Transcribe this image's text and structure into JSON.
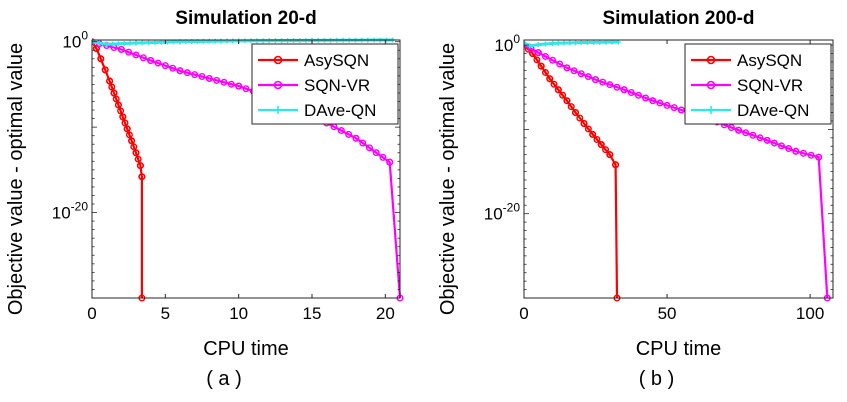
{
  "chart_data": [
    {
      "type": "line",
      "title": "Simulation 20-d",
      "xlabel": "CPU time",
      "ylabel": "Objective value - optimal value",
      "caption": "( a )",
      "yscale": "log",
      "xlim": [
        0,
        21
      ],
      "ylim_log10": [
        -30,
        0.2
      ],
      "xticks": [
        0,
        5,
        10,
        15,
        20
      ],
      "xtick_labels": [
        "0",
        "5",
        "10",
        "15",
        "20"
      ],
      "yticks_log10": [
        0,
        -20
      ],
      "ytick_labels": [
        {
          "base": "10",
          "exp": "0"
        },
        {
          "base": "10",
          "exp": "-20"
        }
      ],
      "legend_position": "top-right",
      "series": [
        {
          "name": "AsySQN",
          "color": "#ff0000",
          "marker": "circle",
          "points": [
            [
              0,
              0
            ],
            [
              0.3,
              -0.8
            ],
            [
              0.6,
              -2.0
            ],
            [
              0.9,
              -3.3
            ],
            [
              1.2,
              -4.6
            ],
            [
              1.5,
              -6.0
            ],
            [
              1.8,
              -7.4
            ],
            [
              2.1,
              -8.8
            ],
            [
              2.4,
              -10.2
            ],
            [
              2.7,
              -11.6
            ],
            [
              3.0,
              -13.0
            ],
            [
              3.3,
              -14.5
            ],
            [
              3.4,
              -15.8
            ],
            [
              3.4,
              -30
            ]
          ]
        },
        {
          "name": "SQN-VR",
          "color": "#ff00ff",
          "marker": "circle",
          "points": [
            [
              0,
              0
            ],
            [
              2,
              -0.9
            ],
            [
              4,
              -2.2
            ],
            [
              6,
              -3.4
            ],
            [
              8,
              -4.3
            ],
            [
              10,
              -5.2
            ],
            [
              12,
              -6.4
            ],
            [
              14,
              -7.9
            ],
            [
              16,
              -9.5
            ],
            [
              18,
              -11.3
            ],
            [
              20.3,
              -14.1
            ],
            [
              21,
              -30
            ]
          ]
        },
        {
          "name": "DAve-QN",
          "color": "#33e6e6",
          "marker": "plus",
          "points": [
            [
              0,
              0
            ],
            [
              1,
              -0.3
            ],
            [
              3,
              -0.15
            ],
            [
              6,
              0
            ],
            [
              10,
              0.1
            ],
            [
              15,
              0.15
            ],
            [
              20.5,
              0.2
            ]
          ]
        }
      ]
    },
    {
      "type": "line",
      "title": "Simulation 200-d",
      "xlabel": "CPU time",
      "ylabel": "Objective value - optimal value",
      "caption": "( b )",
      "yscale": "log",
      "xlim": [
        0,
        108
      ],
      "ylim_log10": [
        -30,
        0.6
      ],
      "xticks": [
        0,
        50,
        100
      ],
      "xtick_labels": [
        "0",
        "50",
        "100"
      ],
      "yticks_log10": [
        0,
        -20
      ],
      "ytick_labels": [
        {
          "base": "10",
          "exp": "0"
        },
        {
          "base": "10",
          "exp": "-20"
        }
      ],
      "legend_position": "top-right",
      "series": [
        {
          "name": "AsySQN",
          "color": "#ff0000",
          "marker": "circle",
          "points": [
            [
              0,
              0
            ],
            [
              3,
              -1.0
            ],
            [
              6,
              -2.5
            ],
            [
              9,
              -4.0
            ],
            [
              12,
              -5.3
            ],
            [
              15,
              -6.6
            ],
            [
              18,
              -8.0
            ],
            [
              21,
              -9.3
            ],
            [
              24,
              -10.6
            ],
            [
              27,
              -11.8
            ],
            [
              30,
              -13.0
            ],
            [
              32,
              -14.2
            ],
            [
              32.5,
              -30
            ]
          ]
        },
        {
          "name": "SQN-VR",
          "color": "#ff00ff",
          "marker": "circle",
          "points": [
            [
              0,
              0
            ],
            [
              5,
              -0.9
            ],
            [
              15,
              -2.7
            ],
            [
              25,
              -4.1
            ],
            [
              35,
              -5.3
            ],
            [
              45,
              -6.6
            ],
            [
              55,
              -7.7
            ],
            [
              65,
              -8.8
            ],
            [
              75,
              -10.1
            ],
            [
              85,
              -11.3
            ],
            [
              95,
              -12.6
            ],
            [
              103,
              -13.3
            ],
            [
              106,
              -30
            ]
          ]
        },
        {
          "name": "DAve-QN",
          "color": "#33e6e6",
          "marker": "plus",
          "points": [
            [
              0,
              0.3
            ],
            [
              2,
              -0.1
            ],
            [
              5,
              0.05
            ],
            [
              10,
              0.2
            ],
            [
              20,
              0.3
            ],
            [
              33,
              0.35
            ]
          ]
        }
      ]
    }
  ]
}
